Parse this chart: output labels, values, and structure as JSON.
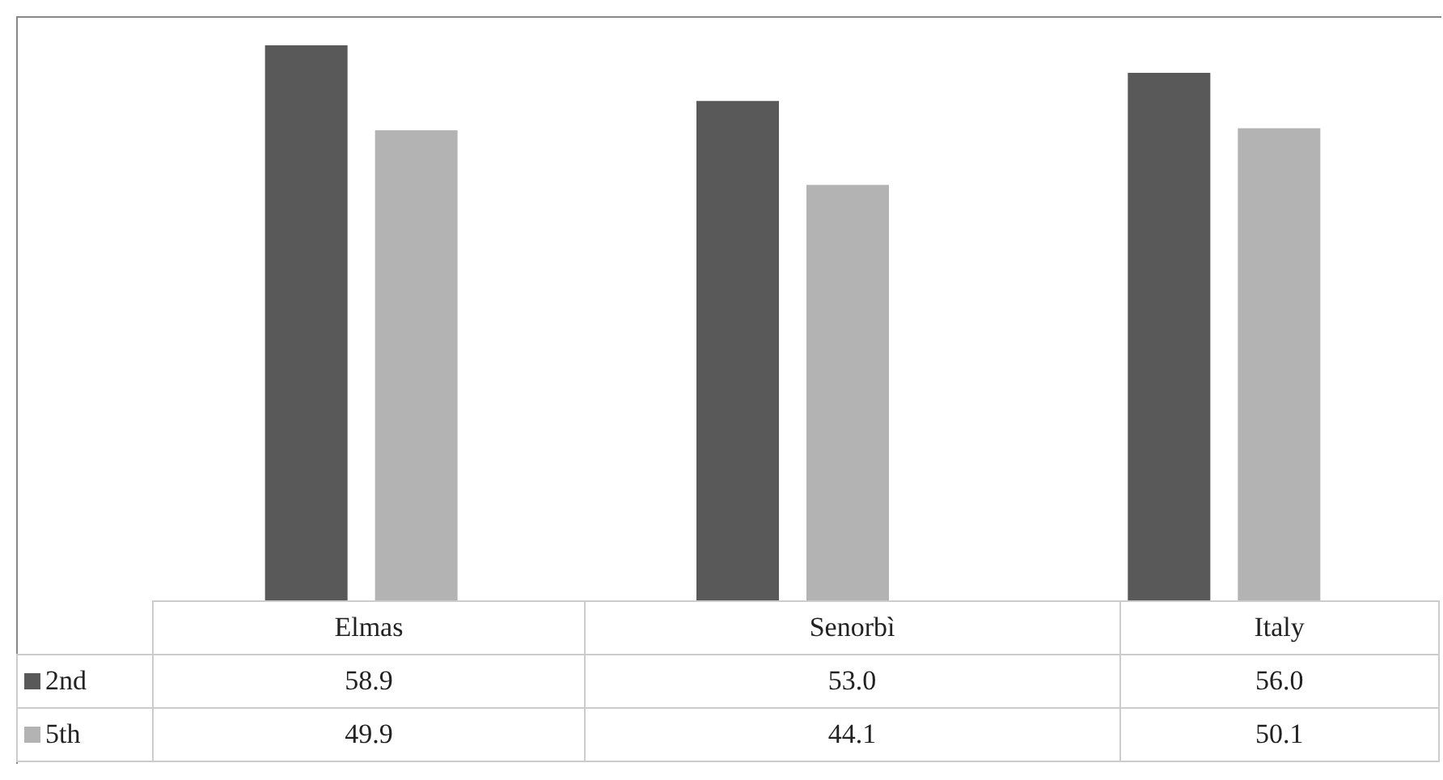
{
  "chart_data": {
    "type": "bar",
    "categories": [
      "Elmas",
      "Senorbì",
      "Italy"
    ],
    "series": [
      {
        "name": "2nd",
        "color": "#595959",
        "values": [
          58.9,
          53.0,
          56.0
        ],
        "value_labels": [
          "58.9",
          "53.0",
          "56.0"
        ]
      },
      {
        "name": "5th",
        "color": "#b3b3b3",
        "values": [
          49.9,
          44.1,
          50.1
        ],
        "value_labels": [
          "49.9",
          "44.1",
          "50.1"
        ]
      }
    ],
    "ylim": [
      0,
      62
    ],
    "legend": "bottom left",
    "grid": false
  }
}
